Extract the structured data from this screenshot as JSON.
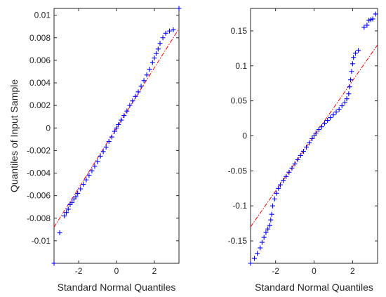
{
  "chart_data": [
    {
      "type": "scatter",
      "title": "",
      "xlabel": "Standard Normal Quantiles",
      "ylabel": "Quantiles of Input Sample",
      "xlim": [
        -3.3,
        3.3
      ],
      "ylim": [
        -0.012,
        0.0106
      ],
      "xticks": [
        -2,
        0,
        2
      ],
      "xtick_labels": [
        "-2",
        "0",
        "2"
      ],
      "yticks": [
        -0.01,
        -0.008,
        -0.006,
        -0.004,
        -0.002,
        0,
        0.002,
        0.004,
        0.006,
        0.008,
        0.01
      ],
      "ytick_labels": [
        "-0.01",
        "-0.008",
        "-0.006",
        "-0.004",
        "-0.002",
        "0",
        "0.002",
        "0.004",
        "0.006",
        "0.008",
        "0.01"
      ],
      "grid": false,
      "legend": "none",
      "marker_color": "#0000ff",
      "reference_line": {
        "color": "#ff0000",
        "style": "dash-dot",
        "x": [
          -3.3,
          3.3
        ],
        "y": [
          -0.0088,
          0.0088
        ]
      },
      "points": [
        [
          -3.3,
          -0.012
        ],
        [
          -3.0,
          -0.0093
        ],
        [
          -2.75,
          -0.0078
        ],
        [
          -2.65,
          -0.0075
        ],
        [
          -2.55,
          -0.0072
        ],
        [
          -2.45,
          -0.0068
        ],
        [
          -2.35,
          -0.0066
        ],
        [
          -2.25,
          -0.0063
        ],
        [
          -2.15,
          -0.0061
        ],
        [
          -2.05,
          -0.0058
        ],
        [
          -1.9,
          -0.0054
        ],
        [
          -1.75,
          -0.005
        ],
        [
          -1.6,
          -0.0046
        ],
        [
          -1.45,
          -0.0042
        ],
        [
          -1.3,
          -0.0038
        ],
        [
          -1.15,
          -0.0034
        ],
        [
          -1.0,
          -0.003
        ],
        [
          -0.85,
          -0.0025
        ],
        [
          -0.7,
          -0.0021
        ],
        [
          -0.55,
          -0.0017
        ],
        [
          -0.4,
          -0.0012
        ],
        [
          -0.25,
          -0.0008
        ],
        [
          -0.1,
          -0.0003
        ],
        [
          0.0,
          0.0
        ],
        [
          0.1,
          0.0003
        ],
        [
          0.25,
          0.0007
        ],
        [
          0.4,
          0.0011
        ],
        [
          0.55,
          0.0015
        ],
        [
          0.7,
          0.002
        ],
        [
          0.85,
          0.0024
        ],
        [
          1.0,
          0.0028
        ],
        [
          1.15,
          0.0032
        ],
        [
          1.3,
          0.0037
        ],
        [
          1.45,
          0.0042
        ],
        [
          1.6,
          0.0047
        ],
        [
          1.75,
          0.0052
        ],
        [
          1.9,
          0.0058
        ],
        [
          2.0,
          0.0062
        ],
        [
          2.1,
          0.0066
        ],
        [
          2.2,
          0.007
        ],
        [
          2.3,
          0.0075
        ],
        [
          2.45,
          0.008
        ],
        [
          2.6,
          0.0084
        ],
        [
          2.8,
          0.0086
        ],
        [
          3.0,
          0.0087
        ],
        [
          3.3,
          0.0106
        ]
      ]
    },
    {
      "type": "scatter",
      "title": "",
      "xlabel": "Standard Normal Quantiles",
      "ylabel": "",
      "xlim": [
        -3.3,
        3.3
      ],
      "ylim": [
        -0.182,
        0.182
      ],
      "xticks": [
        -2,
        0,
        2
      ],
      "xtick_labels": [
        "-2",
        "0",
        "2"
      ],
      "yticks": [
        -0.15,
        -0.1,
        -0.05,
        0,
        0.05,
        0.1,
        0.15
      ],
      "ytick_labels": [
        "-0.15",
        "-0.1",
        "-0.05",
        "0",
        "0.05",
        "0.1",
        "0.15"
      ],
      "grid": false,
      "legend": "none",
      "marker_color": "#0000ff",
      "reference_line": {
        "color": "#ff0000",
        "style": "dash-dot",
        "x": [
          -3.3,
          3.3
        ],
        "y": [
          -0.13,
          0.13
        ]
      },
      "points": [
        [
          -3.3,
          -0.182
        ],
        [
          -3.1,
          -0.175
        ],
        [
          -2.95,
          -0.168
        ],
        [
          -2.8,
          -0.16
        ],
        [
          -2.7,
          -0.152
        ],
        [
          -2.6,
          -0.145
        ],
        [
          -2.5,
          -0.138
        ],
        [
          -2.4,
          -0.133
        ],
        [
          -2.3,
          -0.128
        ],
        [
          -2.25,
          -0.12
        ],
        [
          -2.2,
          -0.112
        ],
        [
          -2.15,
          -0.1
        ],
        [
          -2.05,
          -0.09
        ],
        [
          -1.95,
          -0.082
        ],
        [
          -1.85,
          -0.075
        ],
        [
          -1.75,
          -0.07
        ],
        [
          -1.6,
          -0.064
        ],
        [
          -1.45,
          -0.058
        ],
        [
          -1.3,
          -0.052
        ],
        [
          -1.15,
          -0.046
        ],
        [
          -1.0,
          -0.04
        ],
        [
          -0.85,
          -0.034
        ],
        [
          -0.7,
          -0.028
        ],
        [
          -0.55,
          -0.022
        ],
        [
          -0.4,
          -0.016
        ],
        [
          -0.25,
          -0.01
        ],
        [
          -0.1,
          -0.004
        ],
        [
          0.0,
          0.0
        ],
        [
          0.1,
          0.004
        ],
        [
          0.25,
          0.009
        ],
        [
          0.4,
          0.013
        ],
        [
          0.55,
          0.018
        ],
        [
          0.7,
          0.022
        ],
        [
          0.85,
          0.026
        ],
        [
          1.0,
          0.03
        ],
        [
          1.15,
          0.034
        ],
        [
          1.3,
          0.038
        ],
        [
          1.45,
          0.043
        ],
        [
          1.6,
          0.048
        ],
        [
          1.7,
          0.053
        ],
        [
          1.8,
          0.06
        ],
        [
          1.85,
          0.07
        ],
        [
          1.9,
          0.08
        ],
        [
          1.95,
          0.092
        ],
        [
          2.0,
          0.103
        ],
        [
          2.05,
          0.112
        ],
        [
          2.15,
          0.118
        ],
        [
          2.3,
          0.122
        ],
        [
          2.6,
          0.155
        ],
        [
          2.75,
          0.158
        ],
        [
          2.85,
          0.165
        ],
        [
          2.95,
          0.166
        ],
        [
          3.05,
          0.167
        ],
        [
          3.2,
          0.174
        ]
      ]
    }
  ]
}
